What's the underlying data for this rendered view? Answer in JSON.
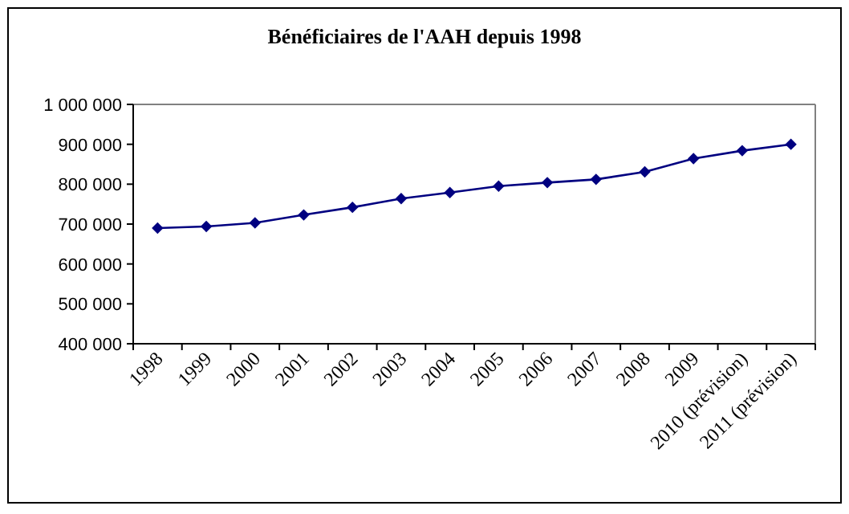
{
  "chart_data": {
    "type": "line",
    "title": "Bénéficiaires de l'AAH depuis 1998",
    "categories": [
      "1998",
      "1999",
      "2000",
      "2001",
      "2002",
      "2003",
      "2004",
      "2005",
      "2006",
      "2007",
      "2008",
      "2009",
      "2010 (prévision)",
      "2011 (prévision)"
    ],
    "series": [
      {
        "color": "#000080",
        "values": [
          690000,
          694000,
          703000,
          723000,
          742000,
          764000,
          779000,
          795000,
          804000,
          812000,
          831000,
          864000,
          884000,
          900000
        ]
      }
    ],
    "ylim": [
      400000,
      1000000
    ],
    "yticks": [
      {
        "value": 400000,
        "label": "400 000"
      },
      {
        "value": 500000,
        "label": "500 000"
      },
      {
        "value": 600000,
        "label": "600 000"
      },
      {
        "value": 700000,
        "label": "700 000"
      },
      {
        "value": 800000,
        "label": "800 000"
      },
      {
        "value": 900000,
        "label": "900 000"
      },
      {
        "value": 1000000,
        "label": "1 000 000"
      }
    ],
    "grid": false,
    "marker": "diamond",
    "line_style": "solid"
  }
}
